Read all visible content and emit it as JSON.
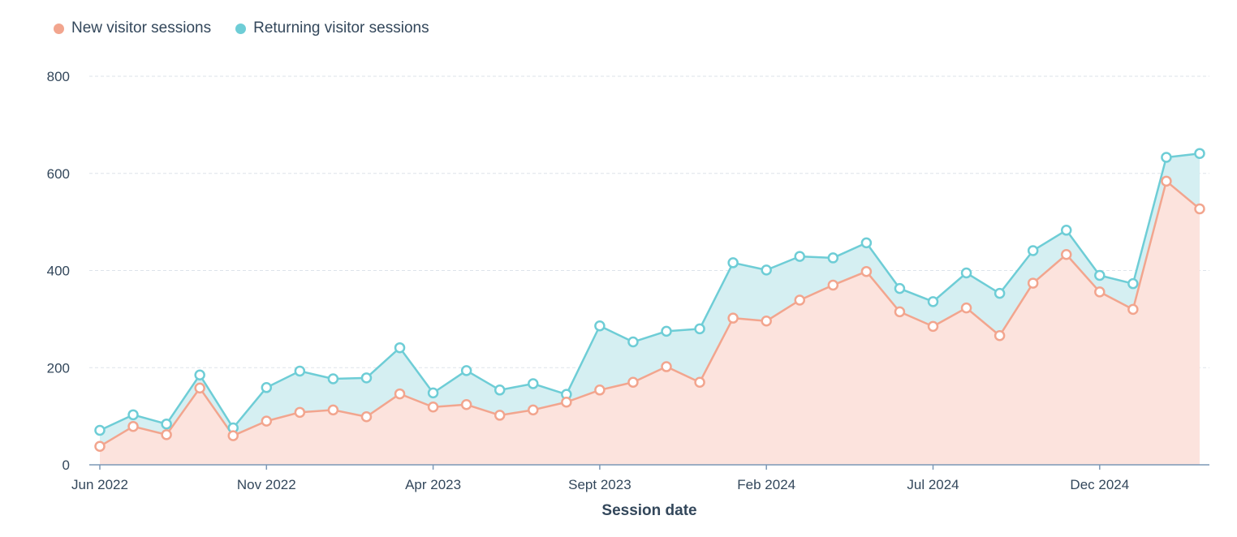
{
  "chart_data": {
    "type": "area",
    "stacked": true,
    "xlabel": "Session date",
    "ylabel": "",
    "ylim": [
      0,
      800
    ],
    "y_ticks": [
      0,
      200,
      400,
      600,
      800
    ],
    "x_tick_labels": [
      {
        "index": 0,
        "label": "Jun 2022"
      },
      {
        "index": 5,
        "label": "Nov 2022"
      },
      {
        "index": 10,
        "label": "Apr 2023"
      },
      {
        "index": 15,
        "label": "Sept 2023"
      },
      {
        "index": 20,
        "label": "Feb 2024"
      },
      {
        "index": 25,
        "label": "Jul 2024"
      },
      {
        "index": 30,
        "label": "Dec 2024"
      }
    ],
    "grid": true,
    "legend_position": "top-left",
    "x": [
      "Jun 2022",
      "Jul 2022",
      "Aug 2022",
      "Sep 2022",
      "Oct 2022",
      "Nov 2022",
      "Dec 2022",
      "Jan 2023",
      "Feb 2023",
      "Mar 2023",
      "Apr 2023",
      "May 2023",
      "Jun 2023",
      "Jul 2023",
      "Aug 2023",
      "Sep 2023",
      "Oct 2023",
      "Nov 2023",
      "Dec 2023",
      "Jan 2024",
      "Feb 2024",
      "Mar 2024",
      "Apr 2024",
      "May 2024",
      "Jun 2024",
      "Jul 2024",
      "Aug 2024",
      "Sep 2024",
      "Oct 2024",
      "Nov 2024",
      "Dec 2024",
      "Jan 2025",
      "Feb 2025",
      "Mar 2025"
    ],
    "series": [
      {
        "name": "New visitor sessions",
        "color": "#f2a58e",
        "fill": "#fce3dd",
        "values": [
          38,
          79,
          62,
          158,
          60,
          90,
          108,
          113,
          99,
          146,
          119,
          124,
          102,
          113,
          129,
          154,
          170,
          202,
          170,
          302,
          296,
          339,
          370,
          398,
          315,
          285,
          323,
          266,
          374,
          433,
          356,
          320,
          584,
          527
        ]
      },
      {
        "name": "Returning visitor sessions",
        "color": "#6ecdd6",
        "fill": "#d5eff2",
        "totals": [
          71,
          103,
          84,
          185,
          76,
          159,
          193,
          177,
          179,
          241,
          148,
          194,
          154,
          167,
          145,
          286,
          253,
          275,
          280,
          416,
          401,
          429,
          426,
          457,
          363,
          336,
          395,
          353,
          441,
          483,
          390,
          373,
          633,
          641
        ]
      }
    ]
  },
  "colors": {
    "grid": "#dde3ea",
    "axis": "#7c98b6",
    "text": "#33475b"
  }
}
